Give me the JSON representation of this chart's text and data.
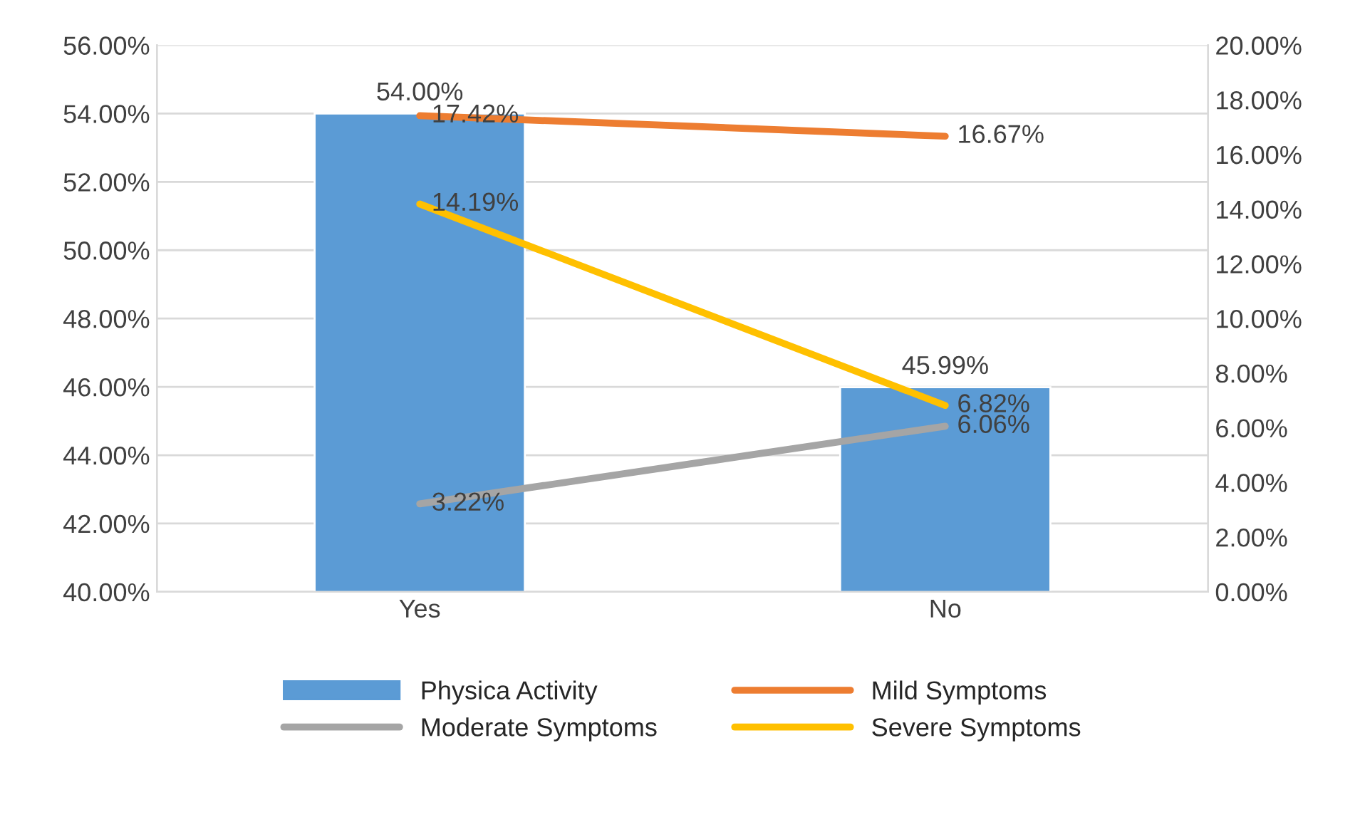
{
  "chart_data": {
    "type": "bar",
    "categories": [
      "Yes",
      "No"
    ],
    "series": [
      {
        "name": "Physica Activity",
        "color": "#5b9bd5",
        "values": [
          54.0,
          45.99
        ],
        "value_labels": [
          "54.00%",
          "45.99%"
        ]
      },
      {
        "name": "Mild Symptoms",
        "type": "line",
        "axis": "y2",
        "color": "#ed7d31",
        "values": [
          17.42,
          16.67
        ],
        "value_labels": [
          "17.42%",
          "16.67%"
        ]
      },
      {
        "name": "Moderate Symptoms",
        "type": "line",
        "axis": "y2",
        "color": "#a5a5a5",
        "values": [
          3.22,
          6.06
        ],
        "value_labels": [
          "3.22%",
          "6.06%"
        ]
      },
      {
        "name": "Severe Symptoms",
        "type": "line",
        "axis": "y2",
        "color": "#ffc000",
        "values": [
          14.19,
          6.82
        ],
        "value_labels": [
          "14.19%",
          "6.82%"
        ]
      }
    ],
    "ylim": [
      40,
      56
    ],
    "yticks": [
      {
        "value": 40,
        "label": "40.00%"
      },
      {
        "value": 42,
        "label": "42.00%"
      },
      {
        "value": 44,
        "label": "44.00%"
      },
      {
        "value": 46,
        "label": "46.00%"
      },
      {
        "value": 48,
        "label": "48.00%"
      },
      {
        "value": 50,
        "label": "50.00%"
      },
      {
        "value": 52,
        "label": "52.00%"
      },
      {
        "value": 54,
        "label": "54.00%"
      },
      {
        "value": 56,
        "label": "56.00%"
      }
    ],
    "y2lim": [
      0,
      20
    ],
    "y2ticks": [
      {
        "value": 0,
        "label": "0.00%"
      },
      {
        "value": 2,
        "label": "2.00%"
      },
      {
        "value": 4,
        "label": "4.00%"
      },
      {
        "value": 6,
        "label": "6.00%"
      },
      {
        "value": 8,
        "label": "8.00%"
      },
      {
        "value": 10,
        "label": "10.00%"
      },
      {
        "value": 12,
        "label": "12.00%"
      },
      {
        "value": 14,
        "label": "14.00%"
      },
      {
        "value": 16,
        "label": "16.00%"
      },
      {
        "value": 18,
        "label": "18.00%"
      },
      {
        "value": 20,
        "label": "20.00%"
      }
    ],
    "grid": "y",
    "legend": "bottom"
  }
}
